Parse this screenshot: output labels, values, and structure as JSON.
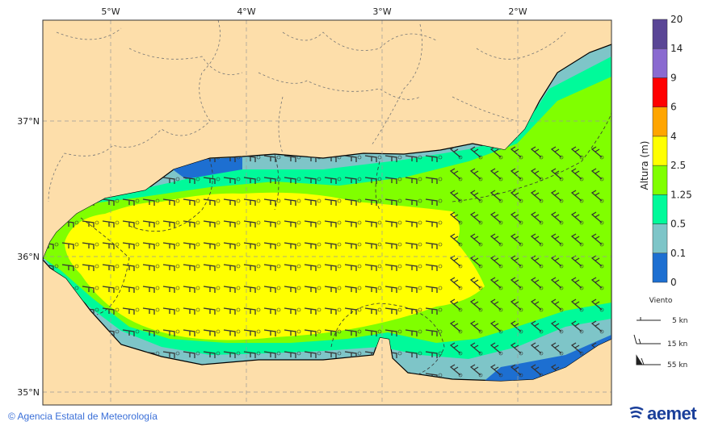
{
  "map": {
    "lon_labels": [
      "5°W",
      "4°W",
      "3°W",
      "2°W"
    ],
    "lat_labels": [
      "37°N",
      "36°N",
      "35°N"
    ],
    "land_color": "#fddeaa",
    "sea_colors": {
      "cyan": "#7ec5c8",
      "spring": "#00fa9a",
      "chartreuse": "#80ff00",
      "yellow": "#ffff00",
      "blue": "#1d6fd1"
    }
  },
  "colorbar": {
    "title": "Altura (m)",
    "ticks": [
      "0",
      "0.1",
      "0.5",
      "1.25",
      "2.5",
      "4",
      "6",
      "9",
      "14",
      "20"
    ],
    "colors": [
      "#1d6fd1",
      "#7ec5c8",
      "#00fa9a",
      "#80ff00",
      "#ffff00",
      "#ffa500",
      "#ff0000",
      "#8a6ad0",
      "#5a4696"
    ]
  },
  "legend": {
    "title": "Viento",
    "items": [
      {
        "label": "5 kn"
      },
      {
        "label": "15 kn"
      },
      {
        "label": "55 kn"
      }
    ]
  },
  "footer": {
    "copyright_symbol": "©",
    "agency": "Agencia Estatal de Meteorología",
    "logo_text": "aemet"
  }
}
